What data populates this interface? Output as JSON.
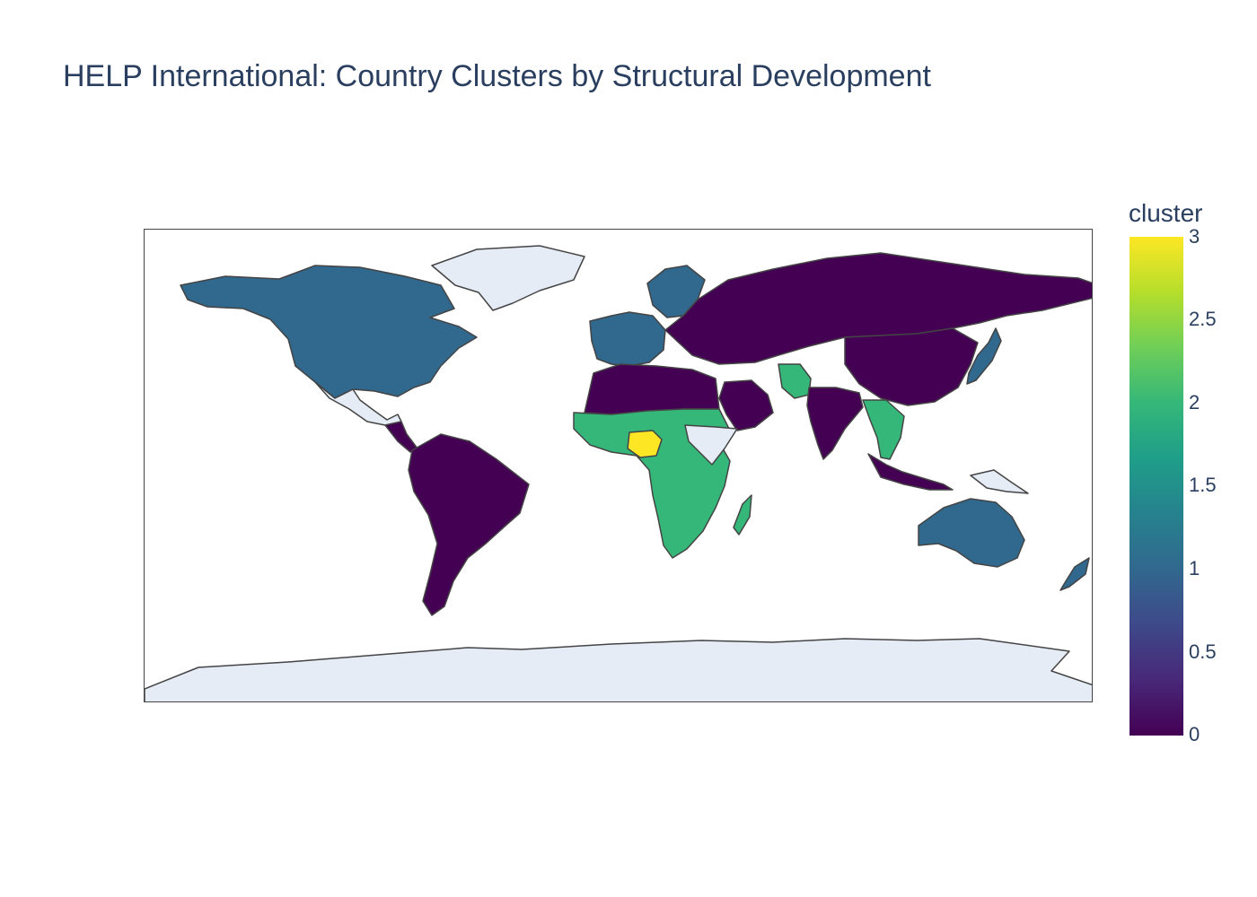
{
  "title": "HELP International: Country Clusters by Structural Development",
  "colorbar": {
    "title": "cluster",
    "ticks": [
      "3",
      "2.5",
      "2",
      "1.5",
      "1",
      "0.5",
      "0"
    ],
    "range": [
      0,
      3
    ],
    "colorscale": "Viridis"
  },
  "colors": {
    "cluster_0": "#440154",
    "cluster_1": "#31688e",
    "cluster_2": "#35b779",
    "cluster_3": "#fde725",
    "no_data": "#e5ecf6",
    "border": "#444444",
    "text": "#2a3f5f"
  },
  "map": {
    "projection": "equirectangular",
    "regions": [
      {
        "name": "North America",
        "cluster": 1
      },
      {
        "name": "Greenland",
        "cluster": null
      },
      {
        "name": "Mexico",
        "cluster": null
      },
      {
        "name": "Central America",
        "cluster": 0
      },
      {
        "name": "South America",
        "cluster": 0
      },
      {
        "name": "Western Europe",
        "cluster": 1
      },
      {
        "name": "Scandinavia",
        "cluster": 1
      },
      {
        "name": "Russia and Central Asia",
        "cluster": 0
      },
      {
        "name": "China",
        "cluster": 0
      },
      {
        "name": "India",
        "cluster": 0
      },
      {
        "name": "Southeast Asia",
        "cluster": 2
      },
      {
        "name": "Indonesia",
        "cluster": 0
      },
      {
        "name": "Japan",
        "cluster": 1
      },
      {
        "name": "North Africa",
        "cluster": 0
      },
      {
        "name": "Arabian Peninsula",
        "cluster": 0
      },
      {
        "name": "Afghanistan and Pakistan",
        "cluster": 2
      },
      {
        "name": "Sub-Saharan Africa",
        "cluster": 2
      },
      {
        "name": "Nigeria",
        "cluster": 3
      },
      {
        "name": "Horn of Africa",
        "cluster": null
      },
      {
        "name": "Madagascar",
        "cluster": 2
      },
      {
        "name": "Australia",
        "cluster": 1
      },
      {
        "name": "New Zealand",
        "cluster": 1
      },
      {
        "name": "Papua New Guinea",
        "cluster": null
      },
      {
        "name": "Antarctica",
        "cluster": null
      }
    ]
  }
}
